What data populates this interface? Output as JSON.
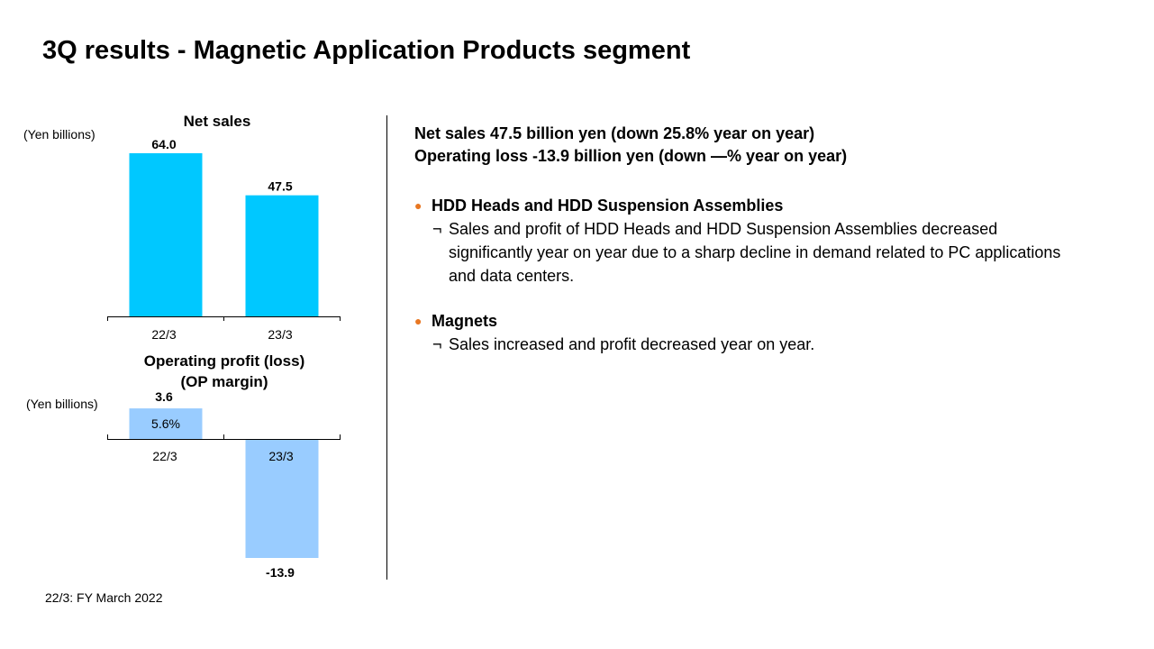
{
  "page": {
    "title": "3Q results - Magnetic Application Products segment",
    "footnote": "22/3: FY March 2022"
  },
  "summary": {
    "line1": "Net sales  47.5 billion yen (down 25.8% year on year)",
    "line2": "Operating loss -13.9 billion yen (down —% year on year)"
  },
  "sections": [
    {
      "heading": "HDD Heads and HDD Suspension Assemblies",
      "bullet_mark": "¬",
      "text": "Sales and profit of HDD Heads and HDD Suspension Assemblies decreased significantly year on year due to a sharp decline in demand related to PC applications and data centers."
    },
    {
      "heading": "Magnets",
      "bullet_mark": "¬",
      "text": "Sales increased and profit decreased year on year."
    }
  ],
  "colors": {
    "net_sales_bar": "#00C8FF",
    "op_bar": "#99CCFF",
    "bullet": "#E87722"
  },
  "chart_data": [
    {
      "type": "bar",
      "title": "Net sales",
      "unit": "(Yen billions)",
      "categories": [
        "22/3",
        "23/3"
      ],
      "values": [
        64.0,
        47.5
      ],
      "value_labels": [
        "64.0",
        "47.5"
      ],
      "ylim": [
        0,
        64.0
      ],
      "grid": false
    },
    {
      "type": "bar",
      "title_line1": "Operating profit (loss)",
      "title_line2": "(OP margin)",
      "unit": "(Yen billions)",
      "categories": [
        "22/3",
        "23/3"
      ],
      "values": [
        3.6,
        -13.9
      ],
      "value_labels": [
        "3.6",
        "-13.9"
      ],
      "margins": [
        "5.6%",
        ""
      ],
      "ylim": [
        -13.9,
        3.6
      ],
      "grid": false
    }
  ]
}
